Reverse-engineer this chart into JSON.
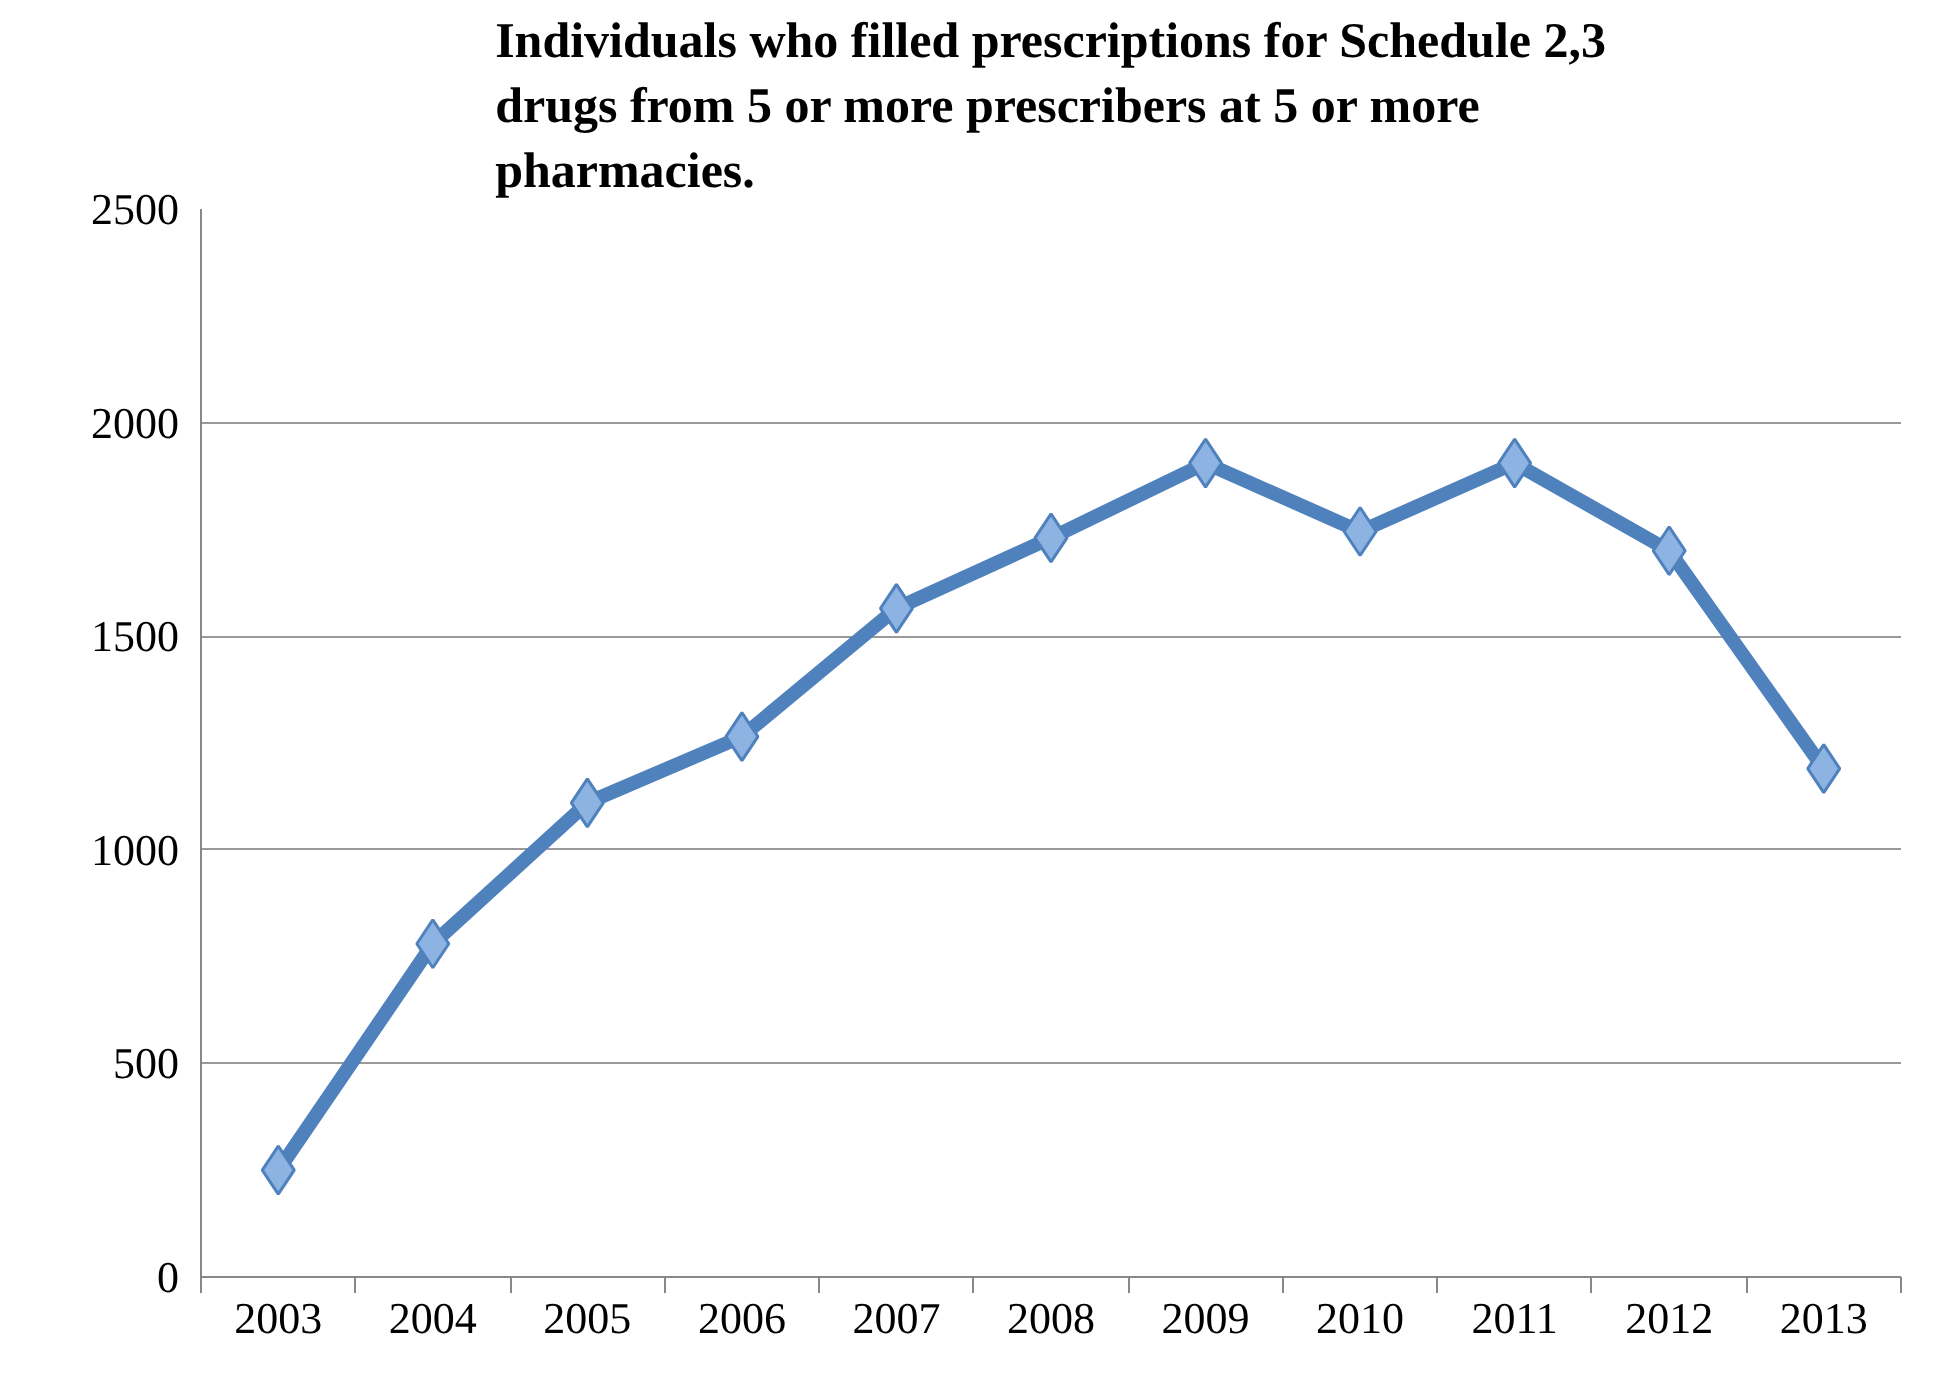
{
  "chart_data": {
    "type": "line",
    "title": "Individuals who filled prescriptions for Schedule 2,3 drugs from 5 or more prescribers at 5 or more pharmacies.",
    "categories": [
      "2003",
      "2004",
      "2005",
      "2006",
      "2007",
      "2008",
      "2009",
      "2010",
      "2011",
      "2012",
      "2013"
    ],
    "series": [
      {
        "color": "#4f81bd",
        "values": [
          250,
          780,
          1110,
          1265,
          1565,
          1730,
          1905,
          1745,
          1905,
          1700,
          1190
        ]
      }
    ],
    "ylim": [
      0,
      2500
    ],
    "yticks": [
      0,
      500,
      1000,
      1500,
      2000,
      2500
    ],
    "grid": "y",
    "marker": "diamond",
    "line_style": "solid"
  }
}
